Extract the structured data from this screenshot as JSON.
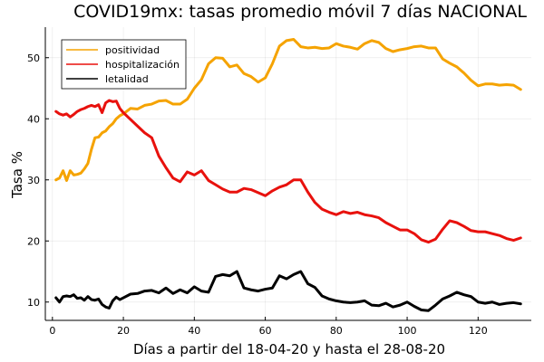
{
  "chart_data": {
    "type": "line",
    "title": "COVID19mx: tasas promedio móvil 7 días NACIONAL",
    "xlabel": "Días a partir del 18-04-20 y hasta el 28-08-20",
    "ylabel": "Tasa %",
    "xlim": [
      -2,
      135
    ],
    "ylim": [
      7,
      55
    ],
    "xticks": [
      0,
      20,
      40,
      60,
      80,
      100,
      120
    ],
    "yticks": [
      10,
      20,
      30,
      40,
      50
    ],
    "grid": true,
    "legend_position": "top-left",
    "series": [
      {
        "name": "positividad",
        "color": "#f5a300",
        "x": [
          1,
          2,
          3,
          4,
          5,
          6,
          7,
          8,
          9,
          10,
          11,
          12,
          13,
          14,
          15,
          16,
          17,
          18,
          19,
          20,
          22,
          24,
          26,
          28,
          30,
          32,
          34,
          36,
          38,
          40,
          42,
          44,
          46,
          48,
          50,
          52,
          54,
          56,
          58,
          60,
          62,
          64,
          66,
          68,
          70,
          72,
          74,
          76,
          78,
          80,
          82,
          84,
          86,
          88,
          90,
          92,
          94,
          96,
          98,
          100,
          102,
          104,
          106,
          108,
          110,
          112,
          114,
          116,
          118,
          120,
          122,
          124,
          126,
          128,
          130,
          132
        ],
        "values": [
          30.0,
          30.3,
          31.5,
          29.9,
          31.5,
          30.8,
          30.9,
          31.1,
          31.8,
          32.7,
          35.0,
          36.9,
          37.0,
          37.7,
          38.0,
          38.7,
          39.2,
          40.0,
          40.5,
          40.8,
          41.7,
          41.6,
          42.2,
          42.4,
          42.9,
          43.0,
          42.4,
          42.4,
          43.2,
          45.0,
          46.4,
          49.0,
          50.0,
          49.9,
          48.5,
          48.8,
          47.4,
          46.9,
          46.0,
          46.7,
          49.0,
          51.9,
          52.8,
          53.0,
          51.8,
          51.6,
          51.7,
          51.5,
          51.6,
          52.3,
          51.9,
          51.7,
          51.4,
          52.3,
          52.8,
          52.5,
          51.5,
          51.0,
          51.3,
          51.5,
          51.8,
          51.9,
          51.6,
          51.6,
          49.8,
          49.1,
          48.5,
          47.5,
          46.3,
          45.4,
          45.7,
          45.7,
          45.5,
          45.6,
          45.5,
          44.8
        ]
      },
      {
        "name": "hospitalización",
        "color": "#e8110d",
        "x": [
          1,
          2,
          3,
          4,
          5,
          6,
          7,
          8,
          9,
          10,
          11,
          12,
          13,
          14,
          15,
          16,
          17,
          18,
          19,
          20,
          22,
          24,
          26,
          28,
          30,
          32,
          34,
          36,
          38,
          40,
          42,
          44,
          46,
          48,
          50,
          52,
          54,
          56,
          58,
          60,
          62,
          64,
          66,
          68,
          70,
          72,
          74,
          76,
          78,
          80,
          82,
          84,
          86,
          88,
          90,
          92,
          94,
          96,
          98,
          100,
          102,
          104,
          106,
          108,
          110,
          112,
          114,
          116,
          118,
          120,
          122,
          124,
          126,
          128,
          130,
          132
        ],
        "values": [
          41.2,
          40.8,
          40.6,
          40.8,
          40.3,
          40.7,
          41.2,
          41.5,
          41.7,
          42.0,
          42.2,
          42.0,
          42.3,
          41.0,
          42.6,
          43.0,
          42.8,
          42.9,
          41.7,
          41.0,
          39.9,
          38.8,
          37.7,
          36.9,
          33.9,
          32.0,
          30.3,
          29.7,
          31.3,
          30.8,
          31.5,
          29.9,
          29.2,
          28.5,
          28.0,
          28.0,
          28.6,
          28.4,
          27.9,
          27.4,
          28.2,
          28.8,
          29.2,
          30.0,
          30.0,
          28.0,
          26.3,
          25.2,
          24.7,
          24.3,
          24.8,
          24.5,
          24.7,
          24.3,
          24.1,
          23.8,
          23.0,
          22.4,
          21.8,
          21.8,
          21.2,
          20.2,
          19.8,
          20.3,
          21.9,
          23.3,
          23.0,
          22.4,
          21.7,
          21.5,
          21.5,
          21.2,
          20.9,
          20.4,
          20.1,
          20.5
        ]
      },
      {
        "name": "letalidad",
        "color": "#000000",
        "x": [
          1,
          2,
          3,
          4,
          5,
          6,
          7,
          8,
          9,
          10,
          11,
          12,
          13,
          14,
          15,
          16,
          17,
          18,
          19,
          20,
          22,
          24,
          26,
          28,
          30,
          32,
          34,
          36,
          38,
          40,
          42,
          44,
          46,
          48,
          50,
          52,
          54,
          56,
          58,
          60,
          62,
          64,
          66,
          68,
          70,
          72,
          74,
          76,
          78,
          80,
          82,
          84,
          86,
          88,
          90,
          92,
          94,
          96,
          98,
          100,
          102,
          104,
          106,
          108,
          110,
          112,
          114,
          116,
          118,
          120,
          122,
          124,
          126,
          128,
          130,
          132
        ],
        "values": [
          10.7,
          10.0,
          10.9,
          11.0,
          10.9,
          11.2,
          10.6,
          10.7,
          10.3,
          10.9,
          10.4,
          10.3,
          10.5,
          9.6,
          9.2,
          9.0,
          10.2,
          10.8,
          10.4,
          10.7,
          11.3,
          11.4,
          11.8,
          11.9,
          11.5,
          12.3,
          11.4,
          12.0,
          11.5,
          12.5,
          11.8,
          11.6,
          14.2,
          14.5,
          14.3,
          15.0,
          12.3,
          12.0,
          11.8,
          12.1,
          12.3,
          14.3,
          13.8,
          14.5,
          15.0,
          13.0,
          12.4,
          11.0,
          10.5,
          10.2,
          10.0,
          9.9,
          10.0,
          10.2,
          9.5,
          9.4,
          9.8,
          9.2,
          9.5,
          10.0,
          9.3,
          8.7,
          8.6,
          9.5,
          10.5,
          11.0,
          11.6,
          11.2,
          10.9,
          10.0,
          9.8,
          10.0,
          9.6,
          9.8,
          9.9,
          9.7
        ]
      }
    ]
  }
}
